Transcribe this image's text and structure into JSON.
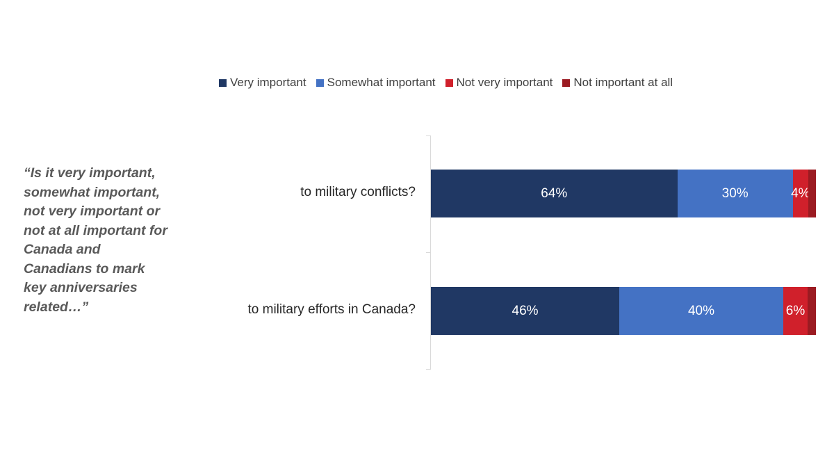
{
  "chart_data": {
    "type": "bar",
    "orientation": "horizontal",
    "stacked": "100%",
    "question": "“Is it very important, somewhat important, not very important or not at all important for Canada and Canadians to mark key anniversaries related…”",
    "categories": [
      "to military conflicts?",
      "to military efforts in Canada?"
    ],
    "series": [
      {
        "name": "Very important",
        "color": "#203864",
        "values": [
          64,
          46
        ],
        "labels": [
          "64%",
          "46%"
        ]
      },
      {
        "name": "Somewhat important",
        "color": "#4472C4",
        "values": [
          30,
          40
        ],
        "labels": [
          "30%",
          "40%"
        ]
      },
      {
        "name": "Not very important",
        "color": "#D0202B",
        "values": [
          4,
          6
        ],
        "labels": [
          "4%",
          "6%"
        ]
      },
      {
        "name": "Not important at all",
        "color": "#9B1B22",
        "values": [
          2,
          2
        ],
        "labels": [
          null,
          null
        ]
      }
    ],
    "legend_position": "top",
    "grid": false
  }
}
